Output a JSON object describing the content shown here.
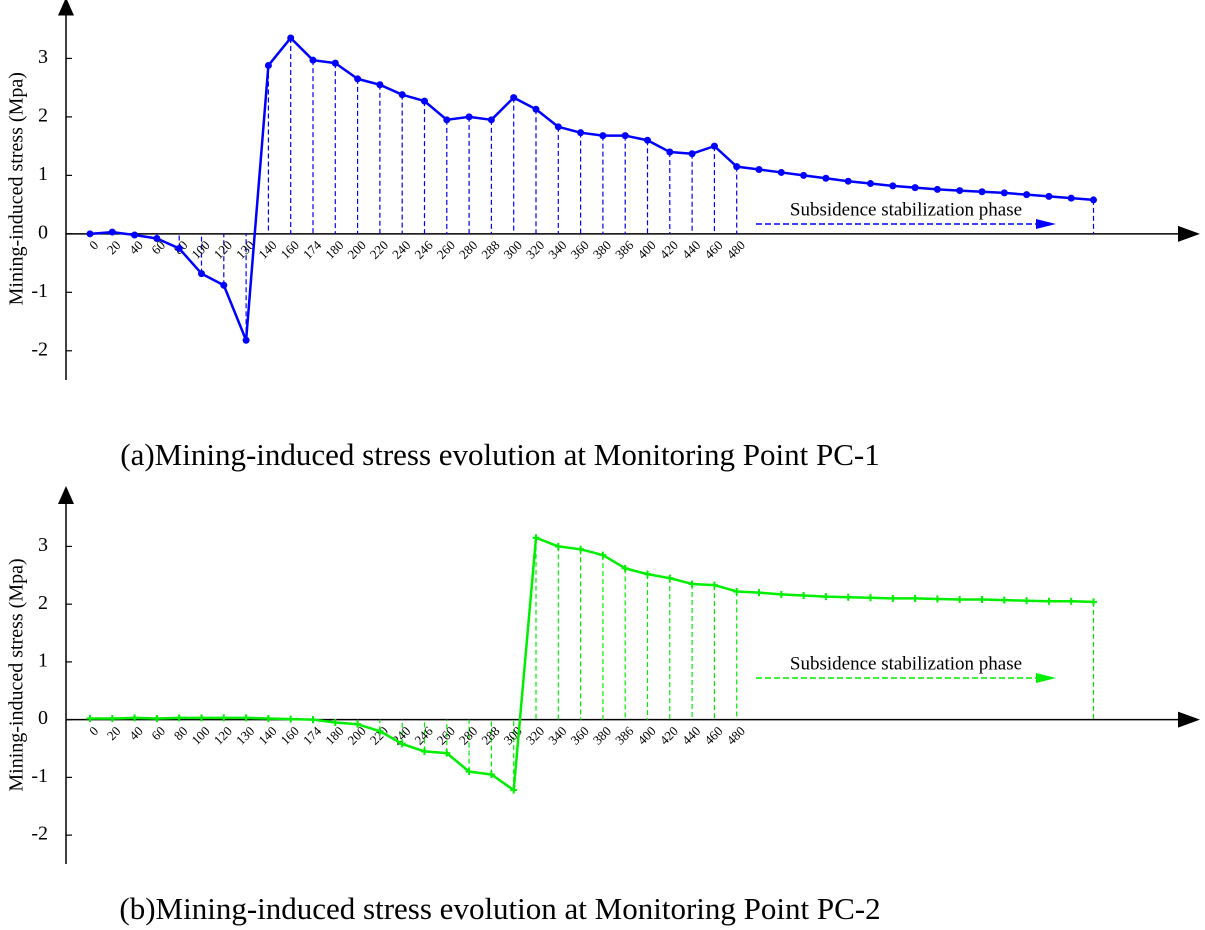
{
  "chart_data": [
    {
      "type": "line",
      "title": "(a)Mining-induced stress evolution at Monitoring Point PC-1",
      "y_label": "Mining-induced stress (Mpa)",
      "annotation": "Subsidence stabilization phase",
      "color": "#0000ff",
      "marker": "circle",
      "categories": [
        "0",
        "20",
        "40",
        "60",
        "80",
        "100",
        "120",
        "130",
        "140",
        "160",
        "174",
        "180",
        "200",
        "220",
        "240",
        "246",
        "260",
        "280",
        "288",
        "300",
        "320",
        "340",
        "360",
        "380",
        "386",
        "400",
        "420",
        "440",
        "460",
        "480",
        null,
        null,
        null,
        null,
        null,
        null,
        null,
        null,
        null,
        null,
        null,
        null,
        null,
        null,
        null,
        null
      ],
      "values": [
        0,
        0.03,
        -0.02,
        -0.08,
        -0.25,
        -0.68,
        -0.88,
        -1.82,
        2.88,
        3.35,
        2.97,
        2.92,
        2.65,
        2.55,
        2.38,
        2.27,
        1.95,
        2.0,
        1.95,
        2.33,
        2.13,
        1.83,
        1.73,
        1.68,
        1.68,
        1.6,
        1.4,
        1.37,
        1.5,
        1.15,
        1.1,
        1.05,
        1.0,
        0.95,
        0.9,
        0.86,
        0.82,
        0.79,
        0.76,
        0.74,
        0.72,
        0.7,
        0.67,
        0.64,
        0.61,
        0.58
      ],
      "ylim": [
        -2.5,
        3.7
      ],
      "yticks": [
        -2,
        -1,
        0,
        1,
        2,
        3
      ]
    },
    {
      "type": "line",
      "title": "(b)Mining-induced stress evolution at Monitoring Point PC-2",
      "y_label": "Mining-induced stress (Mpa)",
      "annotation": "Subsidence stabilization phase",
      "color": "#00ee00",
      "marker": "cross",
      "categories": [
        "0",
        "20",
        "40",
        "60",
        "80",
        "100",
        "120",
        "130",
        "140",
        "160",
        "174",
        "180",
        "200",
        "220",
        "240",
        "246",
        "260",
        "280",
        "288",
        "300",
        "320",
        "340",
        "360",
        "380",
        "386",
        "400",
        "420",
        "440",
        "460",
        "480",
        null,
        null,
        null,
        null,
        null,
        null,
        null,
        null,
        null,
        null,
        null,
        null,
        null,
        null,
        null,
        null
      ],
      "values": [
        0.02,
        0.02,
        0.03,
        0.02,
        0.03,
        0.03,
        0.03,
        0.03,
        0.02,
        0.01,
        0.0,
        -0.05,
        -0.08,
        -0.2,
        -0.42,
        -0.55,
        -0.58,
        -0.9,
        -0.95,
        -1.22,
        3.15,
        3.0,
        2.95,
        2.85,
        2.62,
        2.52,
        2.45,
        2.35,
        2.33,
        2.22,
        2.2,
        2.17,
        2.15,
        2.13,
        2.12,
        2.11,
        2.1,
        2.1,
        2.09,
        2.08,
        2.08,
        2.07,
        2.06,
        2.05,
        2.05,
        2.04
      ],
      "ylim": [
        -2.5,
        3.7
      ],
      "yticks": [
        -2,
        -1,
        0,
        1,
        2,
        3
      ]
    }
  ]
}
